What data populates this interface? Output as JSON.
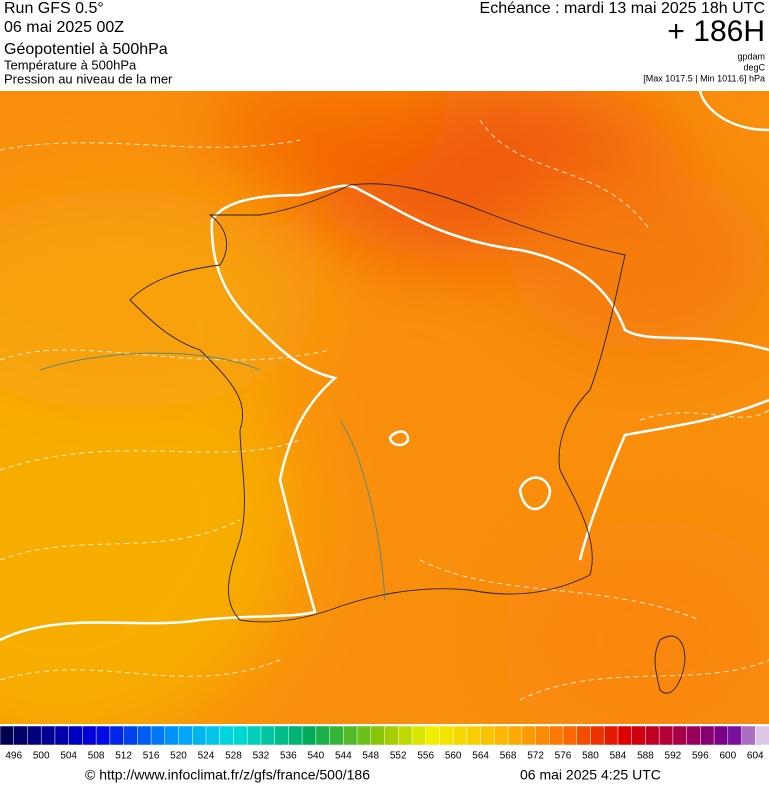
{
  "header": {
    "run": "Run GFS 0.5°",
    "date": "06 mai 2025 00Z",
    "fields": [
      "Géopotentiel à 500hPa",
      "Température à 500hPa",
      "Pression au niveau de la mer"
    ],
    "echeance": "Echéance : mardi 13 mai 2025 18h UTC",
    "lead": "+ 186H",
    "units": [
      "gpdam",
      "degC",
      "[Max 1017.5 | Min 1011.6] hPa"
    ]
  },
  "legend": {
    "ticks": [
      "496",
      "500",
      "504",
      "508",
      "512",
      "516",
      "520",
      "524",
      "528",
      "532",
      "536",
      "540",
      "544",
      "548",
      "552",
      "556",
      "560",
      "564",
      "568",
      "572",
      "576",
      "580",
      "584",
      "588",
      "592",
      "596",
      "600",
      "604"
    ]
  },
  "footer": {
    "source": "© http://www.infoclimat.fr/z/gfs/france/500/186",
    "generated": "06 mai 2025  4:25 UTC"
  }
}
